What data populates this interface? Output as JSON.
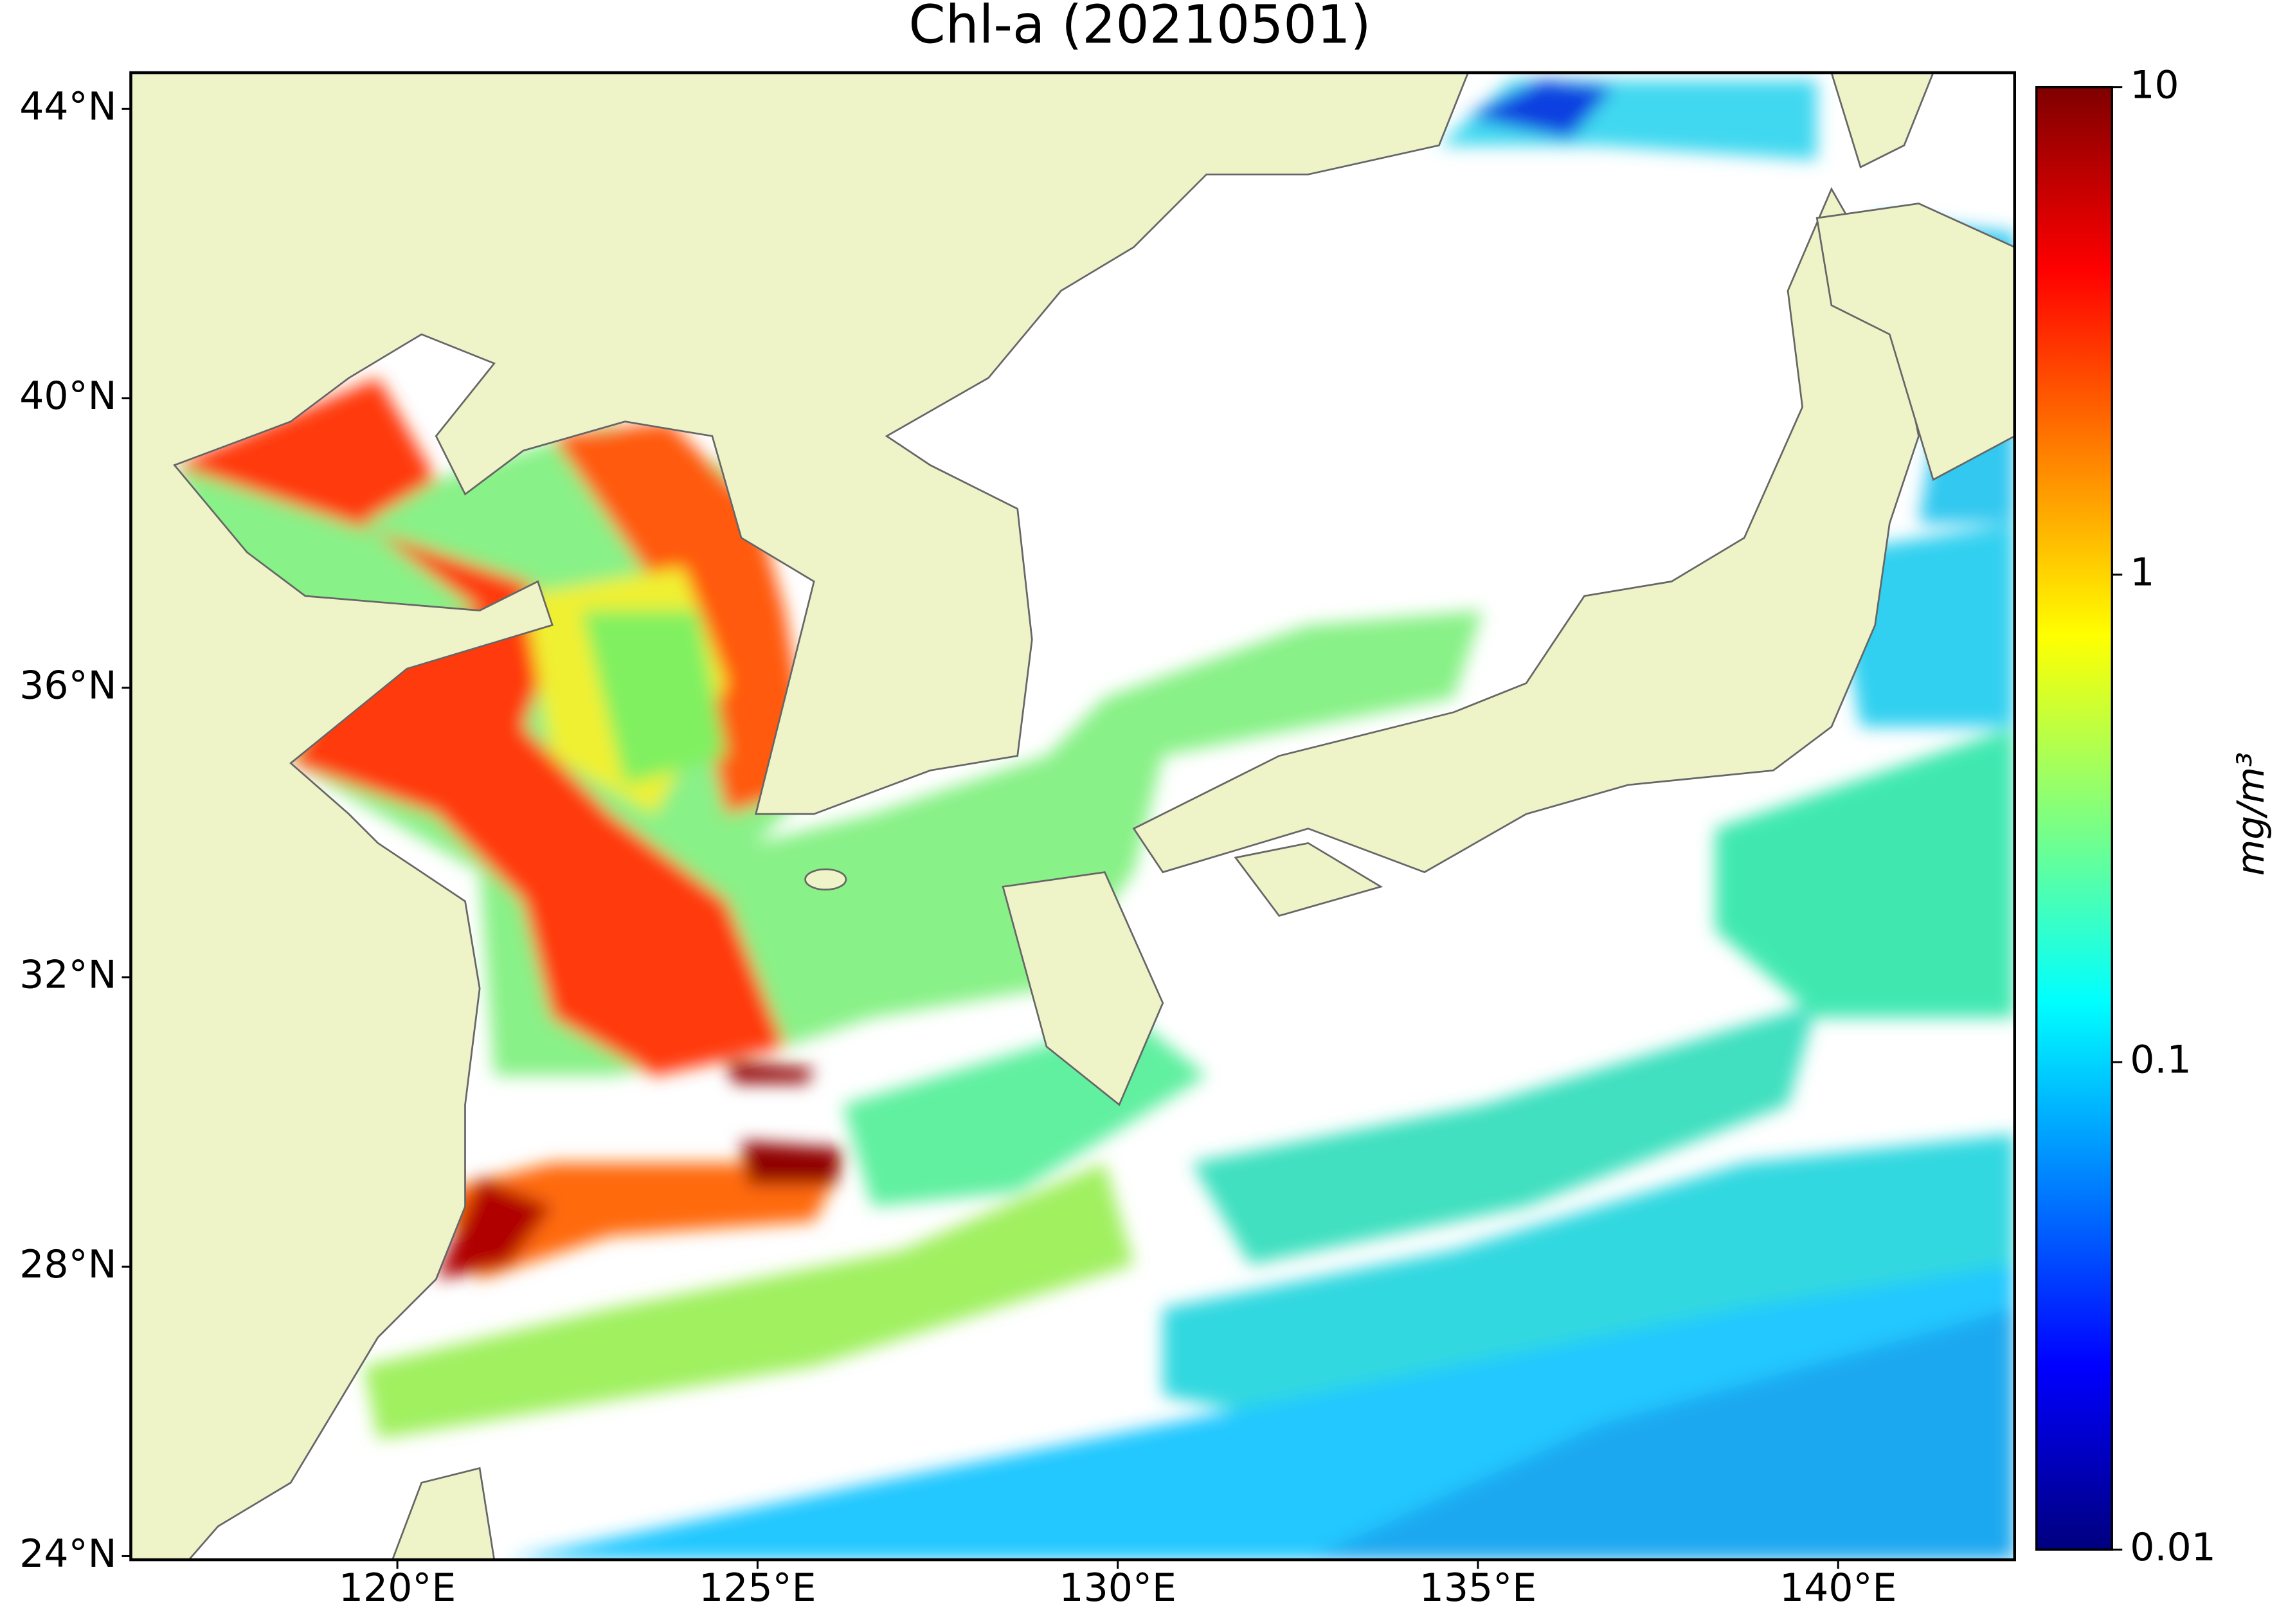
{
  "title": "Chl-a (20210501)",
  "map": {
    "xlim": [
      116.3,
      142.45
    ],
    "ylim": [
      23.95,
      44.5
    ],
    "xticks": [
      {
        "value": 120,
        "label": "120°E"
      },
      {
        "value": 125,
        "label": "125°E"
      },
      {
        "value": 130,
        "label": "130°E"
      },
      {
        "value": 135,
        "label": "135°E"
      },
      {
        "value": 140,
        "label": "140°E"
      }
    ],
    "yticks": [
      {
        "value": 24,
        "label": "24°N"
      },
      {
        "value": 28,
        "label": "28°N"
      },
      {
        "value": 32,
        "label": "32°N"
      },
      {
        "value": 36,
        "label": "36°N"
      },
      {
        "value": 40,
        "label": "40°N"
      },
      {
        "value": 44,
        "label": "44°N"
      }
    ]
  },
  "colorbar": {
    "label": "mg/m³",
    "lim": [
      0.01,
      10
    ],
    "ticks": [
      0.01,
      0.1,
      1,
      10
    ],
    "log": true
  }
}
